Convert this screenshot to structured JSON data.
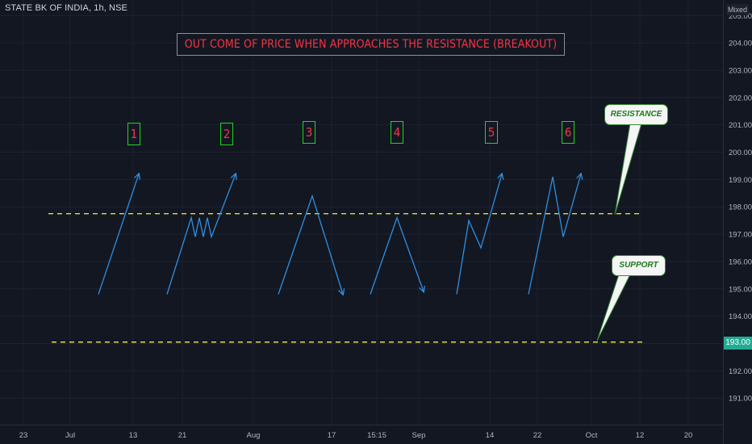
{
  "symbol_label": "STATE BK OF INDIA, 1h, NSE",
  "scale_mode": "Mixed",
  "title": "OUT COME OF PRICE WHEN APPROACHES THE RESISTANCE (BREAKOUT)",
  "numbers": [
    "1",
    "2",
    "3",
    "4",
    "5",
    "6"
  ],
  "callouts": {
    "resistance": "RESISTANCE",
    "support": "SUPPORT"
  },
  "current_price_tag": "193.00",
  "colors": {
    "background": "#131722",
    "grid": "#1e2230",
    "title_text": "#f23645",
    "number_box_border": "#22d422",
    "level_line": "#e6dc3a",
    "path": "#2f8fe0",
    "callout_text": "#1b7a1b",
    "price_tag": "#22ab94"
  },
  "chart_data": {
    "type": "line",
    "y_axis": {
      "position": "right",
      "range": [
        190.5,
        205.5
      ],
      "ticks": [
        "191.00",
        "192.00",
        "193.00",
        "194.00",
        "195.00",
        "196.00",
        "197.00",
        "198.00",
        "199.00",
        "200.00",
        "201.00",
        "202.00",
        "203.00",
        "204.00",
        "205.00"
      ]
    },
    "x_axis": {
      "ticks": [
        {
          "label": "23",
          "i": 0
        },
        {
          "label": "Jul",
          "i": 1
        },
        {
          "label": "13",
          "i": 2
        },
        {
          "label": "21",
          "i": 3
        },
        {
          "label": "Aug",
          "i": 4
        },
        {
          "label": "17",
          "i": 5
        },
        {
          "label": "15:15",
          "i": 6
        },
        {
          "label": "Sep",
          "i": 7
        },
        {
          "label": "14",
          "i": 8
        },
        {
          "label": "22",
          "i": 9
        },
        {
          "label": "Oct",
          "i": 10
        },
        {
          "label": "12",
          "i": 11
        },
        {
          "label": "20",
          "i": 12
        }
      ]
    },
    "levels": [
      {
        "name": "resistance",
        "value": 197.75
      },
      {
        "name": "support",
        "value": 193.05
      }
    ],
    "patterns": [
      {
        "label": "1",
        "outcome": "breakout",
        "points": [
          [
            0,
            194.8
          ],
          [
            1,
            199.2
          ]
        ]
      },
      {
        "label": "2",
        "outcome": "breakout",
        "points": [
          [
            0,
            194.8
          ],
          [
            1,
            197.6
          ],
          [
            2,
            196.9
          ],
          [
            3,
            197.6
          ],
          [
            4,
            196.9
          ],
          [
            5,
            197.6
          ],
          [
            6,
            196.9
          ],
          [
            7,
            199.2
          ]
        ]
      },
      {
        "label": "3",
        "outcome": "rejection",
        "points": [
          [
            0,
            194.8
          ],
          [
            1,
            198.4
          ],
          [
            2,
            194.8
          ]
        ]
      },
      {
        "label": "4",
        "outcome": "rejection",
        "points": [
          [
            0,
            194.8
          ],
          [
            1,
            197.6
          ],
          [
            2,
            194.9
          ]
        ]
      },
      {
        "label": "5",
        "outcome": "breakout",
        "points": [
          [
            0,
            194.8
          ],
          [
            1,
            197.5
          ],
          [
            2,
            196.5
          ],
          [
            3,
            199.2
          ]
        ]
      },
      {
        "label": "6",
        "outcome": "breakout",
        "points": [
          [
            0,
            194.8
          ],
          [
            1,
            199.1
          ],
          [
            2,
            196.9
          ],
          [
            3,
            199.2
          ]
        ]
      }
    ]
  }
}
